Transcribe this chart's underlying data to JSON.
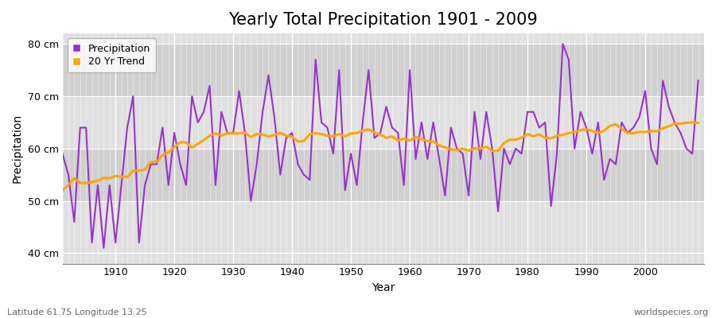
{
  "title": "Yearly Total Precipitation 1901 - 2009",
  "xlabel": "Year",
  "ylabel": "Precipitation",
  "lat_lon_label": "Latitude 61.75 Longitude 13.25",
  "source_label": "worldspecies.org",
  "years": [
    1901,
    1902,
    1903,
    1904,
    1905,
    1906,
    1907,
    1908,
    1909,
    1910,
    1911,
    1912,
    1913,
    1914,
    1915,
    1916,
    1917,
    1918,
    1919,
    1920,
    1921,
    1922,
    1923,
    1924,
    1925,
    1926,
    1927,
    1928,
    1929,
    1930,
    1931,
    1932,
    1933,
    1934,
    1935,
    1936,
    1937,
    1938,
    1939,
    1940,
    1941,
    1942,
    1943,
    1944,
    1945,
    1946,
    1947,
    1948,
    1949,
    1950,
    1951,
    1952,
    1953,
    1954,
    1955,
    1956,
    1957,
    1958,
    1959,
    1960,
    1961,
    1962,
    1963,
    1964,
    1965,
    1966,
    1967,
    1968,
    1969,
    1970,
    1971,
    1972,
    1973,
    1974,
    1975,
    1976,
    1977,
    1978,
    1979,
    1980,
    1981,
    1982,
    1983,
    1984,
    1985,
    1986,
    1987,
    1988,
    1989,
    1990,
    1991,
    1992,
    1993,
    1994,
    1995,
    1996,
    1997,
    1998,
    1999,
    2000,
    2001,
    2002,
    2003,
    2004,
    2005,
    2006,
    2007,
    2008,
    2009
  ],
  "precip": [
    59,
    55,
    46,
    64,
    64,
    42,
    53,
    41,
    53,
    42,
    53,
    64,
    70,
    42,
    53,
    57,
    57,
    64,
    53,
    63,
    57,
    53,
    70,
    65,
    67,
    72,
    53,
    67,
    63,
    63,
    71,
    63,
    50,
    57,
    67,
    74,
    66,
    55,
    62,
    63,
    57,
    55,
    54,
    77,
    65,
    64,
    59,
    75,
    52,
    59,
    53,
    65,
    75,
    62,
    63,
    68,
    64,
    63,
    53,
    75,
    58,
    65,
    58,
    65,
    58,
    51,
    64,
    60,
    59,
    51,
    67,
    58,
    67,
    60,
    48,
    60,
    57,
    60,
    59,
    67,
    67,
    64,
    65,
    49,
    59,
    80,
    77,
    60,
    67,
    64,
    59,
    65,
    54,
    58,
    57,
    65,
    63,
    64,
    66,
    71,
    60,
    57,
    73,
    68,
    65,
    63,
    60,
    59,
    73
  ],
  "ylim": [
    38,
    82
  ],
  "yticks": [
    40,
    50,
    60,
    70,
    80
  ],
  "ytick_labels": [
    "40 cm",
    "50 cm",
    "60 cm",
    "70 cm",
    "80 cm"
  ],
  "xticks": [
    1910,
    1920,
    1930,
    1940,
    1950,
    1960,
    1970,
    1980,
    1990,
    2000
  ],
  "precip_color": "#9933CC",
  "trend_color": "#FFA500",
  "fig_bg_color": "#FFFFFF",
  "band_colors": [
    "#E0E0E0",
    "#D0D0D0"
  ],
  "title_fontsize": 15,
  "axis_label_fontsize": 10,
  "tick_fontsize": 9,
  "legend_fontsize": 9,
  "small_label_fontsize": 8
}
